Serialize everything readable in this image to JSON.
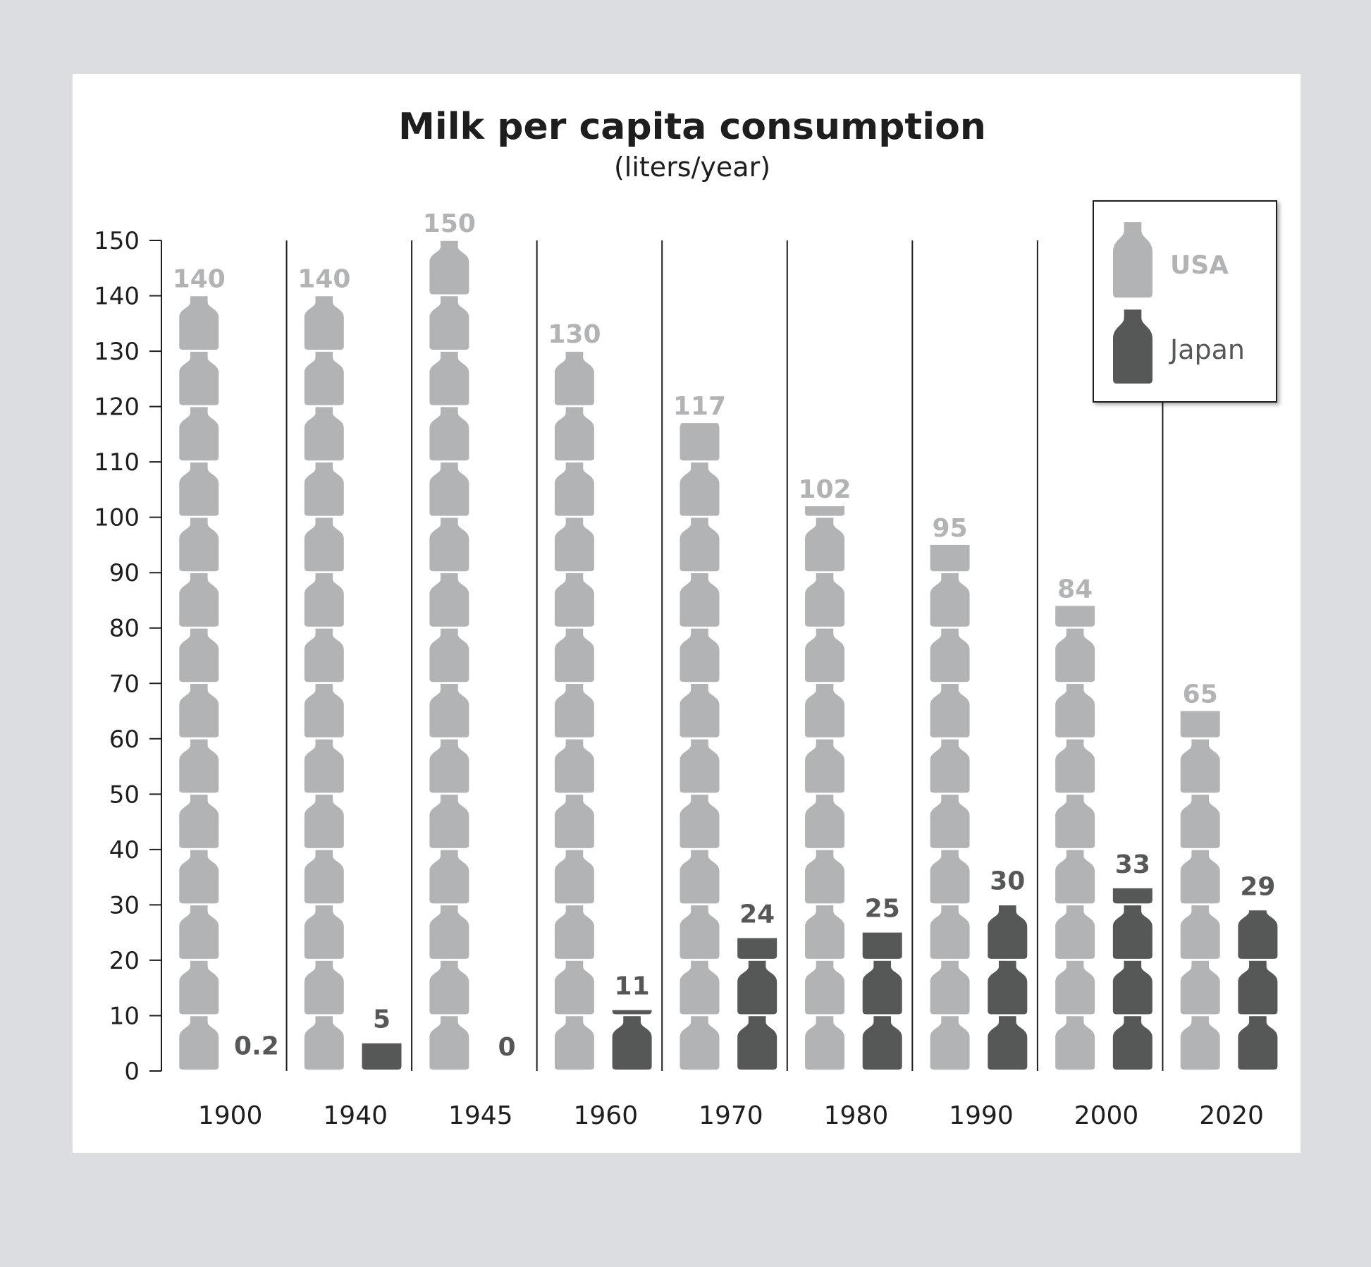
{
  "chart_data": {
    "type": "bar",
    "title": "Milk per capita consumption",
    "subtitle": "(liters/year)",
    "categories": [
      "1900",
      "1940",
      "1945",
      "1960",
      "1970",
      "1980",
      "1990",
      "2000",
      "2020"
    ],
    "series": [
      {
        "name": "USA",
        "values": [
          140,
          140,
          150,
          130,
          117,
          102,
          95,
          84,
          65
        ],
        "labels": [
          "140",
          "140",
          "150",
          "130",
          "117",
          "102",
          "95",
          "84",
          "65"
        ]
      },
      {
        "name": "Japan",
        "values": [
          0.2,
          5,
          0,
          11,
          24,
          25,
          30,
          33,
          29
        ],
        "labels": [
          "0.2",
          "5",
          "0",
          "11",
          "24",
          "25",
          "30",
          "33",
          "29"
        ]
      }
    ],
    "yticks": [
      "0",
      "10",
      "20",
      "30",
      "40",
      "50",
      "60",
      "70",
      "80",
      "90",
      "100",
      "110",
      "120",
      "130",
      "140",
      "150"
    ],
    "ylim": [
      0,
      150
    ],
    "grid": false,
    "legend_position": "top-right",
    "colors": {
      "USA": "#b2b3b5",
      "Japan": "#555856",
      "background": "#dcdde0",
      "panel": "#ffffff",
      "axis": "#1e1e1e"
    },
    "mark_icon": "milk-bottle-icon"
  }
}
